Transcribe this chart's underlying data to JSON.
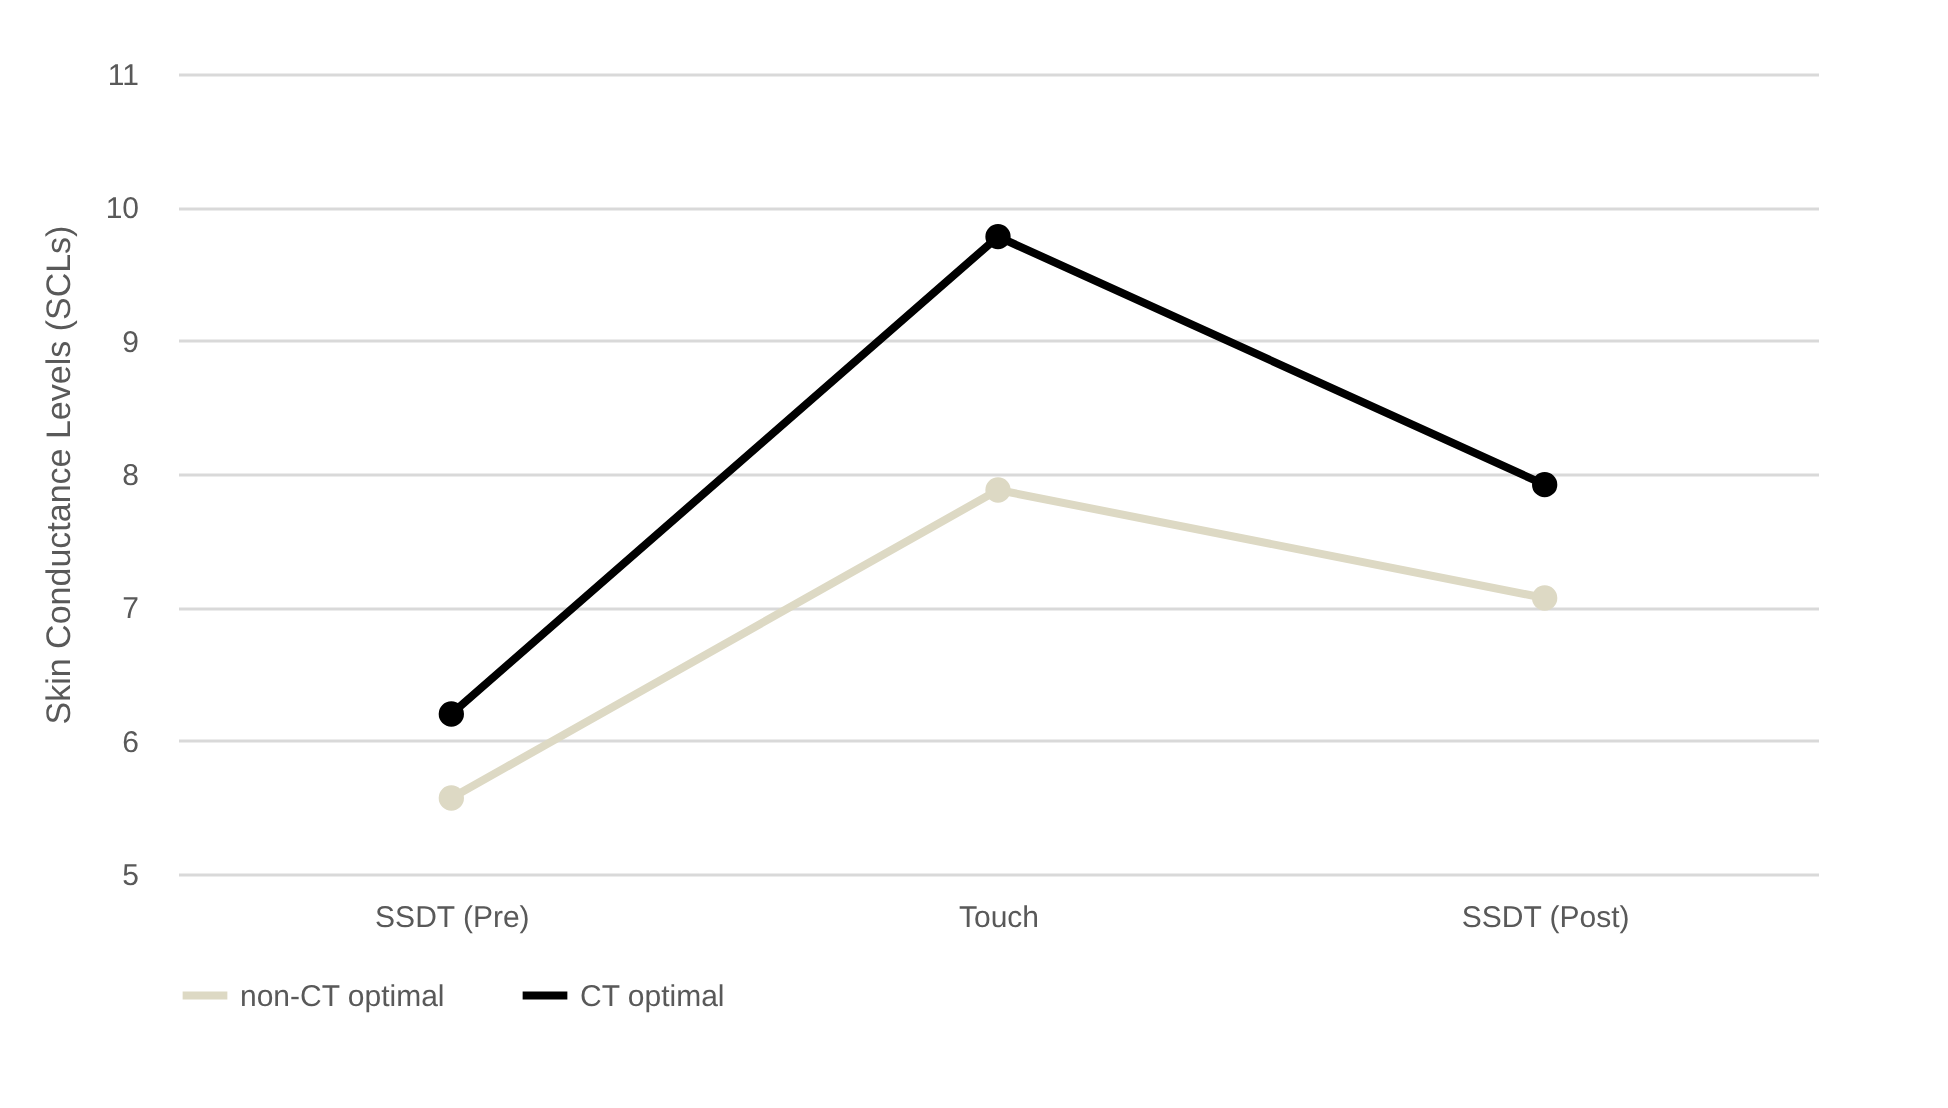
{
  "chart_data": {
    "type": "line",
    "ylabel": "Skin Conductance Levels (SCLs)",
    "categories": [
      "SSDT (Pre)",
      "Touch",
      "SSDT (Post)"
    ],
    "series": [
      {
        "name": "non-CT optimal",
        "color": "#ddd9c4",
        "values": [
          5.57,
          7.88,
          7.07
        ]
      },
      {
        "name": "CT optimal",
        "color": "#000000",
        "values": [
          6.2,
          9.78,
          7.92
        ]
      }
    ],
    "ylim": [
      5,
      11
    ],
    "yticks": [
      5,
      6,
      7,
      8,
      9,
      10,
      11
    ],
    "grid": "y",
    "legend": "bottom",
    "marker": "circle",
    "line_style": "solid"
  }
}
